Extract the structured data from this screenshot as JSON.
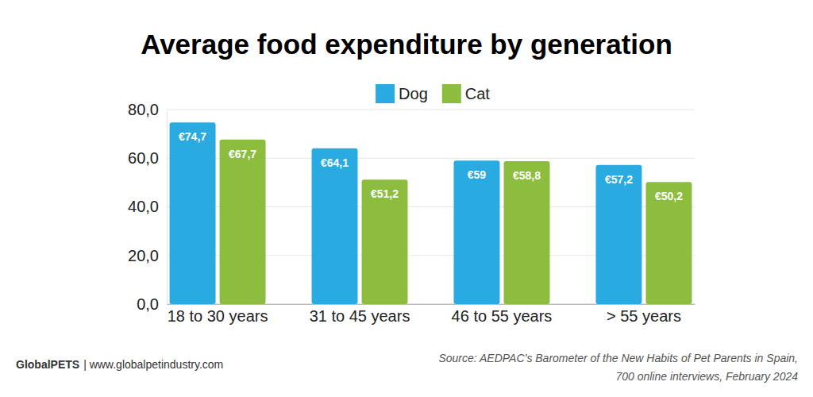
{
  "chart_data": {
    "type": "bar",
    "title": "Average food expenditure by generation",
    "categories": [
      "18 to 30 years",
      "31 to 45 years",
      "46 to 55 years",
      "> 55 years"
    ],
    "series": [
      {
        "name": "Dog",
        "color": "#29abe2",
        "values": [
          74.7,
          64.1,
          59,
          57.2
        ],
        "value_labels": [
          "€74,7",
          "€64,1",
          "€59",
          "€57,2"
        ]
      },
      {
        "name": "Cat",
        "color": "#8cbd3f",
        "values": [
          67.7,
          51.2,
          58.8,
          50.2
        ],
        "value_labels": [
          "€67,7",
          "€51,2",
          "€58,8",
          "€50,2"
        ]
      }
    ],
    "ylim": [
      0,
      80
    ],
    "yticks": [
      {
        "value": 0,
        "label": "0,0"
      },
      {
        "value": 20,
        "label": "20,0"
      },
      {
        "value": 40,
        "label": "40,0"
      },
      {
        "value": 60,
        "label": "60,0"
      },
      {
        "value": 80,
        "label": "80,0"
      }
    ],
    "grid": true,
    "legend": "top",
    "data_labels": true,
    "credit": [
      "GlobalPETS",
      "| www.globalpetindustry.com"
    ],
    "source": [
      "Source: AEDPAC’s Barometer of the New Habits of Pet Parents in Spain,",
      "700 online interviews, February 2024"
    ]
  }
}
